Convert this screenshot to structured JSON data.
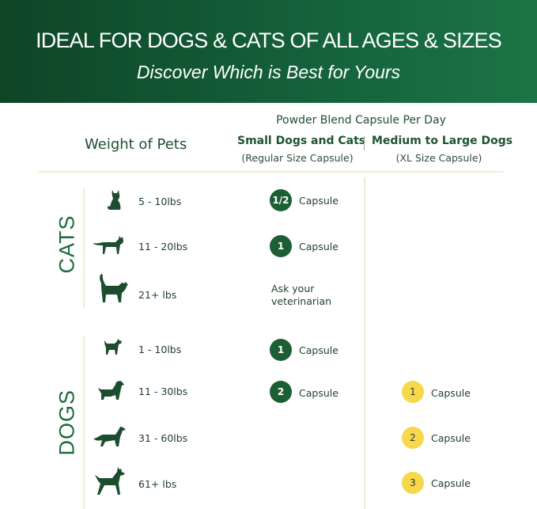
{
  "header": {
    "title": "IDEAL FOR DOGS & CATS OF ALL AGES & SIZES",
    "subtitle": "Discover Which is Best for Yours"
  },
  "table": {
    "group_heading": "Powder Blend Capsule Per Day",
    "weight_heading": "Weight of Pets",
    "columns": [
      {
        "label": "Small Dogs and Cats",
        "sublabel": "(Regular Size Capsule)"
      },
      {
        "label": "Medium to Large Dogs",
        "sublabel": "(XL Size Capsule)"
      }
    ],
    "cats": {
      "label": "CATS",
      "rows": [
        {
          "icon": "sitting-cat-icon",
          "weight": "5 - 10lbs",
          "small": {
            "badge": "1/2",
            "unit": "Capsule"
          }
        },
        {
          "icon": "cat-icon",
          "weight": "11 - 20lbs",
          "small": {
            "badge": "1",
            "unit": "Capsule"
          }
        },
        {
          "icon": "large-cat-icon",
          "weight": "21+ lbs",
          "small": {
            "text": "Ask your veterinarian"
          }
        }
      ]
    },
    "dogs": {
      "label": "DOGS",
      "rows": [
        {
          "icon": "small-dog-icon",
          "weight": "1 - 10lbs",
          "small": {
            "badge": "1",
            "unit": "Capsule"
          }
        },
        {
          "icon": "spaniel-dog-icon",
          "weight": "11 - 30lbs",
          "small": {
            "badge": "2",
            "unit": "Capsule"
          },
          "large": {
            "badge": "1",
            "unit": "Capsule"
          }
        },
        {
          "icon": "setter-dog-icon",
          "weight": "31 - 60lbs",
          "large": {
            "badge": "2",
            "unit": "Capsule"
          }
        },
        {
          "icon": "doberman-dog-icon",
          "weight": "61+ lbs",
          "large": {
            "badge": "3",
            "unit": "Capsule"
          }
        }
      ]
    }
  },
  "colors": {
    "header_green": "#14603a",
    "badge_green": "#1c5f34",
    "badge_yellow": "#f6d84a",
    "divider": "#eef0cc"
  }
}
